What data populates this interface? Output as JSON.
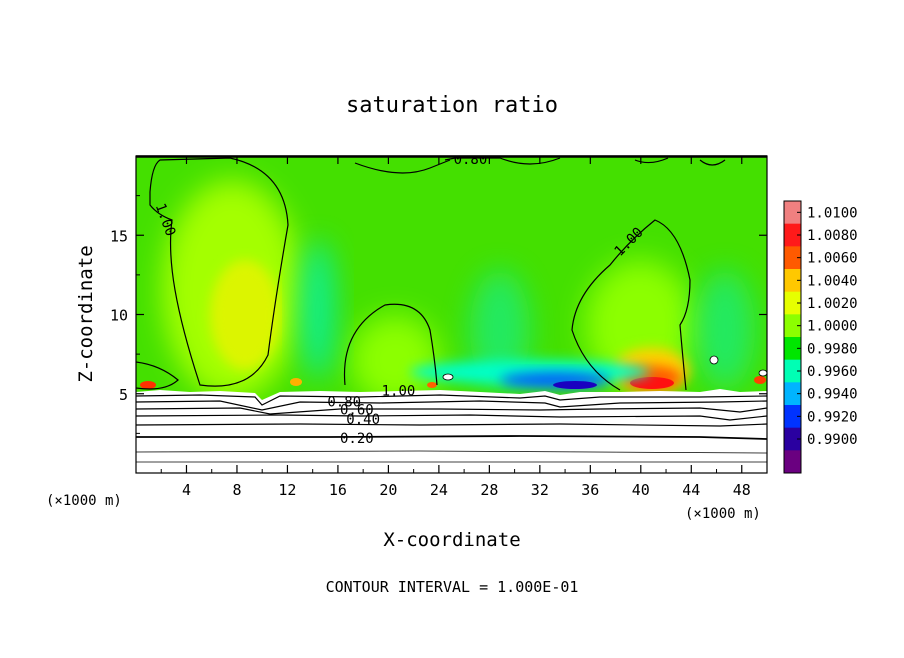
{
  "chart_data": {
    "type": "heatmap",
    "title": "saturation ratio",
    "xlabel": "X-coordinate",
    "ylabel": "Z-coordinate",
    "x_unit_left": "(×1000 m)",
    "x_unit_right": "(×1000 m)",
    "xlim": [
      0,
      50
    ],
    "ylim": [
      0,
      20
    ],
    "x_ticks": [
      4,
      8,
      12,
      16,
      20,
      24,
      28,
      32,
      36,
      40,
      44,
      48
    ],
    "y_ticks": [
      5,
      10,
      15
    ],
    "footer": "CONTOUR INTERVAL = 1.000E-01",
    "colorbar": {
      "levels": [
        "1.0100",
        "1.0080",
        "1.0060",
        "1.0040",
        "1.0020",
        "1.0000",
        "0.9980",
        "0.9960",
        "0.9940",
        "0.9920",
        "0.9900"
      ],
      "colors": [
        "#f08080",
        "#ff1a1a",
        "#ff5a00",
        "#ffc800",
        "#e6ff00",
        "#8cff00",
        "#00e600",
        "#00ffb4",
        "#00b4ff",
        "#0033ff",
        "#2a00a0",
        "#6a0080"
      ]
    },
    "contour_labels": [
      {
        "text": "0.80",
        "x": 26.5,
        "z": 19.8
      },
      {
        "text": "1.00",
        "x": 2.0,
        "z": 16.2
      },
      {
        "text": "1.00",
        "x": 39.3,
        "z": 14.7
      },
      {
        "text": "1.00",
        "x": 20.8,
        "z": 5.2
      },
      {
        "text": "0.80",
        "x": 16.5,
        "z": 4.5
      },
      {
        "text": "0.60",
        "x": 17.5,
        "z": 4.0
      },
      {
        "text": "0.40",
        "x": 18.0,
        "z": 3.4
      },
      {
        "text": "0.20",
        "x": 17.5,
        "z": 2.2
      }
    ],
    "features": [
      {
        "kind": "supersaturated-plume",
        "x_range": [
          1,
          12
        ],
        "z_top": 19,
        "peak": "1.0020"
      },
      {
        "kind": "supersaturated-plume",
        "x_range": [
          17,
          24
        ],
        "z_top": 11,
        "peak": "1.0020"
      },
      {
        "kind": "supersaturated-plume",
        "x_range": [
          35,
          45
        ],
        "z_top": 16,
        "peak": "1.0060"
      },
      {
        "kind": "subsaturated-pocket",
        "x_range": [
          30,
          38
        ],
        "z": 5.3,
        "min": "0.9920"
      }
    ]
  }
}
